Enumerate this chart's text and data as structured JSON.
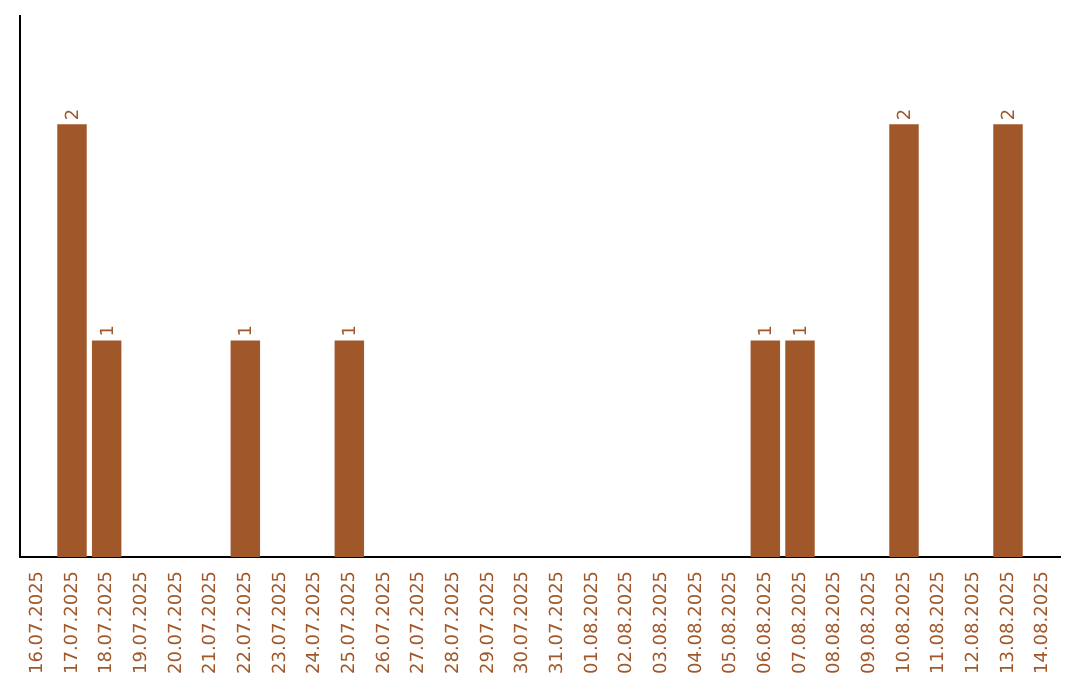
{
  "chart_data": {
    "type": "bar",
    "categories": [
      "16.07.2025",
      "17.07.2025",
      "18.07.2025",
      "19.07.2025",
      "20.07.2025",
      "21.07.2025",
      "22.07.2025",
      "23.07.2025",
      "24.07.2025",
      "25.07.2025",
      "26.07.2025",
      "27.07.2025",
      "28.07.2025",
      "29.07.2025",
      "30.07.2025",
      "31.07.2025",
      "01.08.2025",
      "02.08.2025",
      "03.08.2025",
      "04.08.2025",
      "05.08.2025",
      "06.08.2025",
      "07.08.2025",
      "08.08.2025",
      "09.08.2025",
      "10.08.2025",
      "11.08.2025",
      "12.08.2025",
      "13.08.2025",
      "14.08.2025"
    ],
    "values": [
      0,
      2,
      1,
      0,
      0,
      0,
      1,
      0,
      0,
      1,
      0,
      0,
      0,
      0,
      0,
      0,
      0,
      0,
      0,
      0,
      0,
      1,
      1,
      0,
      0,
      2,
      0,
      0,
      2,
      0
    ],
    "value_labels": [
      null,
      "2",
      "1",
      null,
      null,
      null,
      "1",
      null,
      null,
      "1",
      null,
      null,
      null,
      null,
      null,
      null,
      null,
      null,
      null,
      null,
      null,
      "1",
      "1",
      null,
      null,
      "2",
      null,
      null,
      "2",
      null
    ],
    "color": "#a0582a",
    "grid": false,
    "legend": false,
    "tick_labels": "x"
  }
}
